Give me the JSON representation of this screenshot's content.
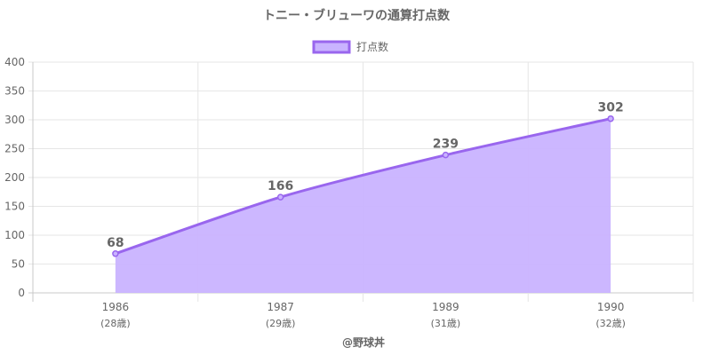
{
  "chart_data": {
    "type": "area",
    "title": "トニー・ブリューワの通算打点数",
    "legend": {
      "label": "打点数",
      "position": "top"
    },
    "categories": [
      "1986",
      "1987",
      "1989",
      "1990"
    ],
    "category_sublabels": [
      "(28歳)",
      "(29歳)",
      "(31歳)",
      "(32歳)"
    ],
    "series": [
      {
        "name": "打点数",
        "values": [
          68,
          166,
          239,
          302
        ]
      }
    ],
    "y_ticks": [
      "0",
      "50",
      "100",
      "150",
      "200",
      "250",
      "300",
      "350",
      "400"
    ],
    "ylim": [
      0,
      400
    ],
    "grid": true,
    "colors": {
      "line": "#9966ee",
      "fill": "#c9b3ff",
      "grid": "#e6e6e6",
      "axis": "#c8c8c8"
    }
  },
  "footer": {
    "credit": "@野球丼"
  }
}
